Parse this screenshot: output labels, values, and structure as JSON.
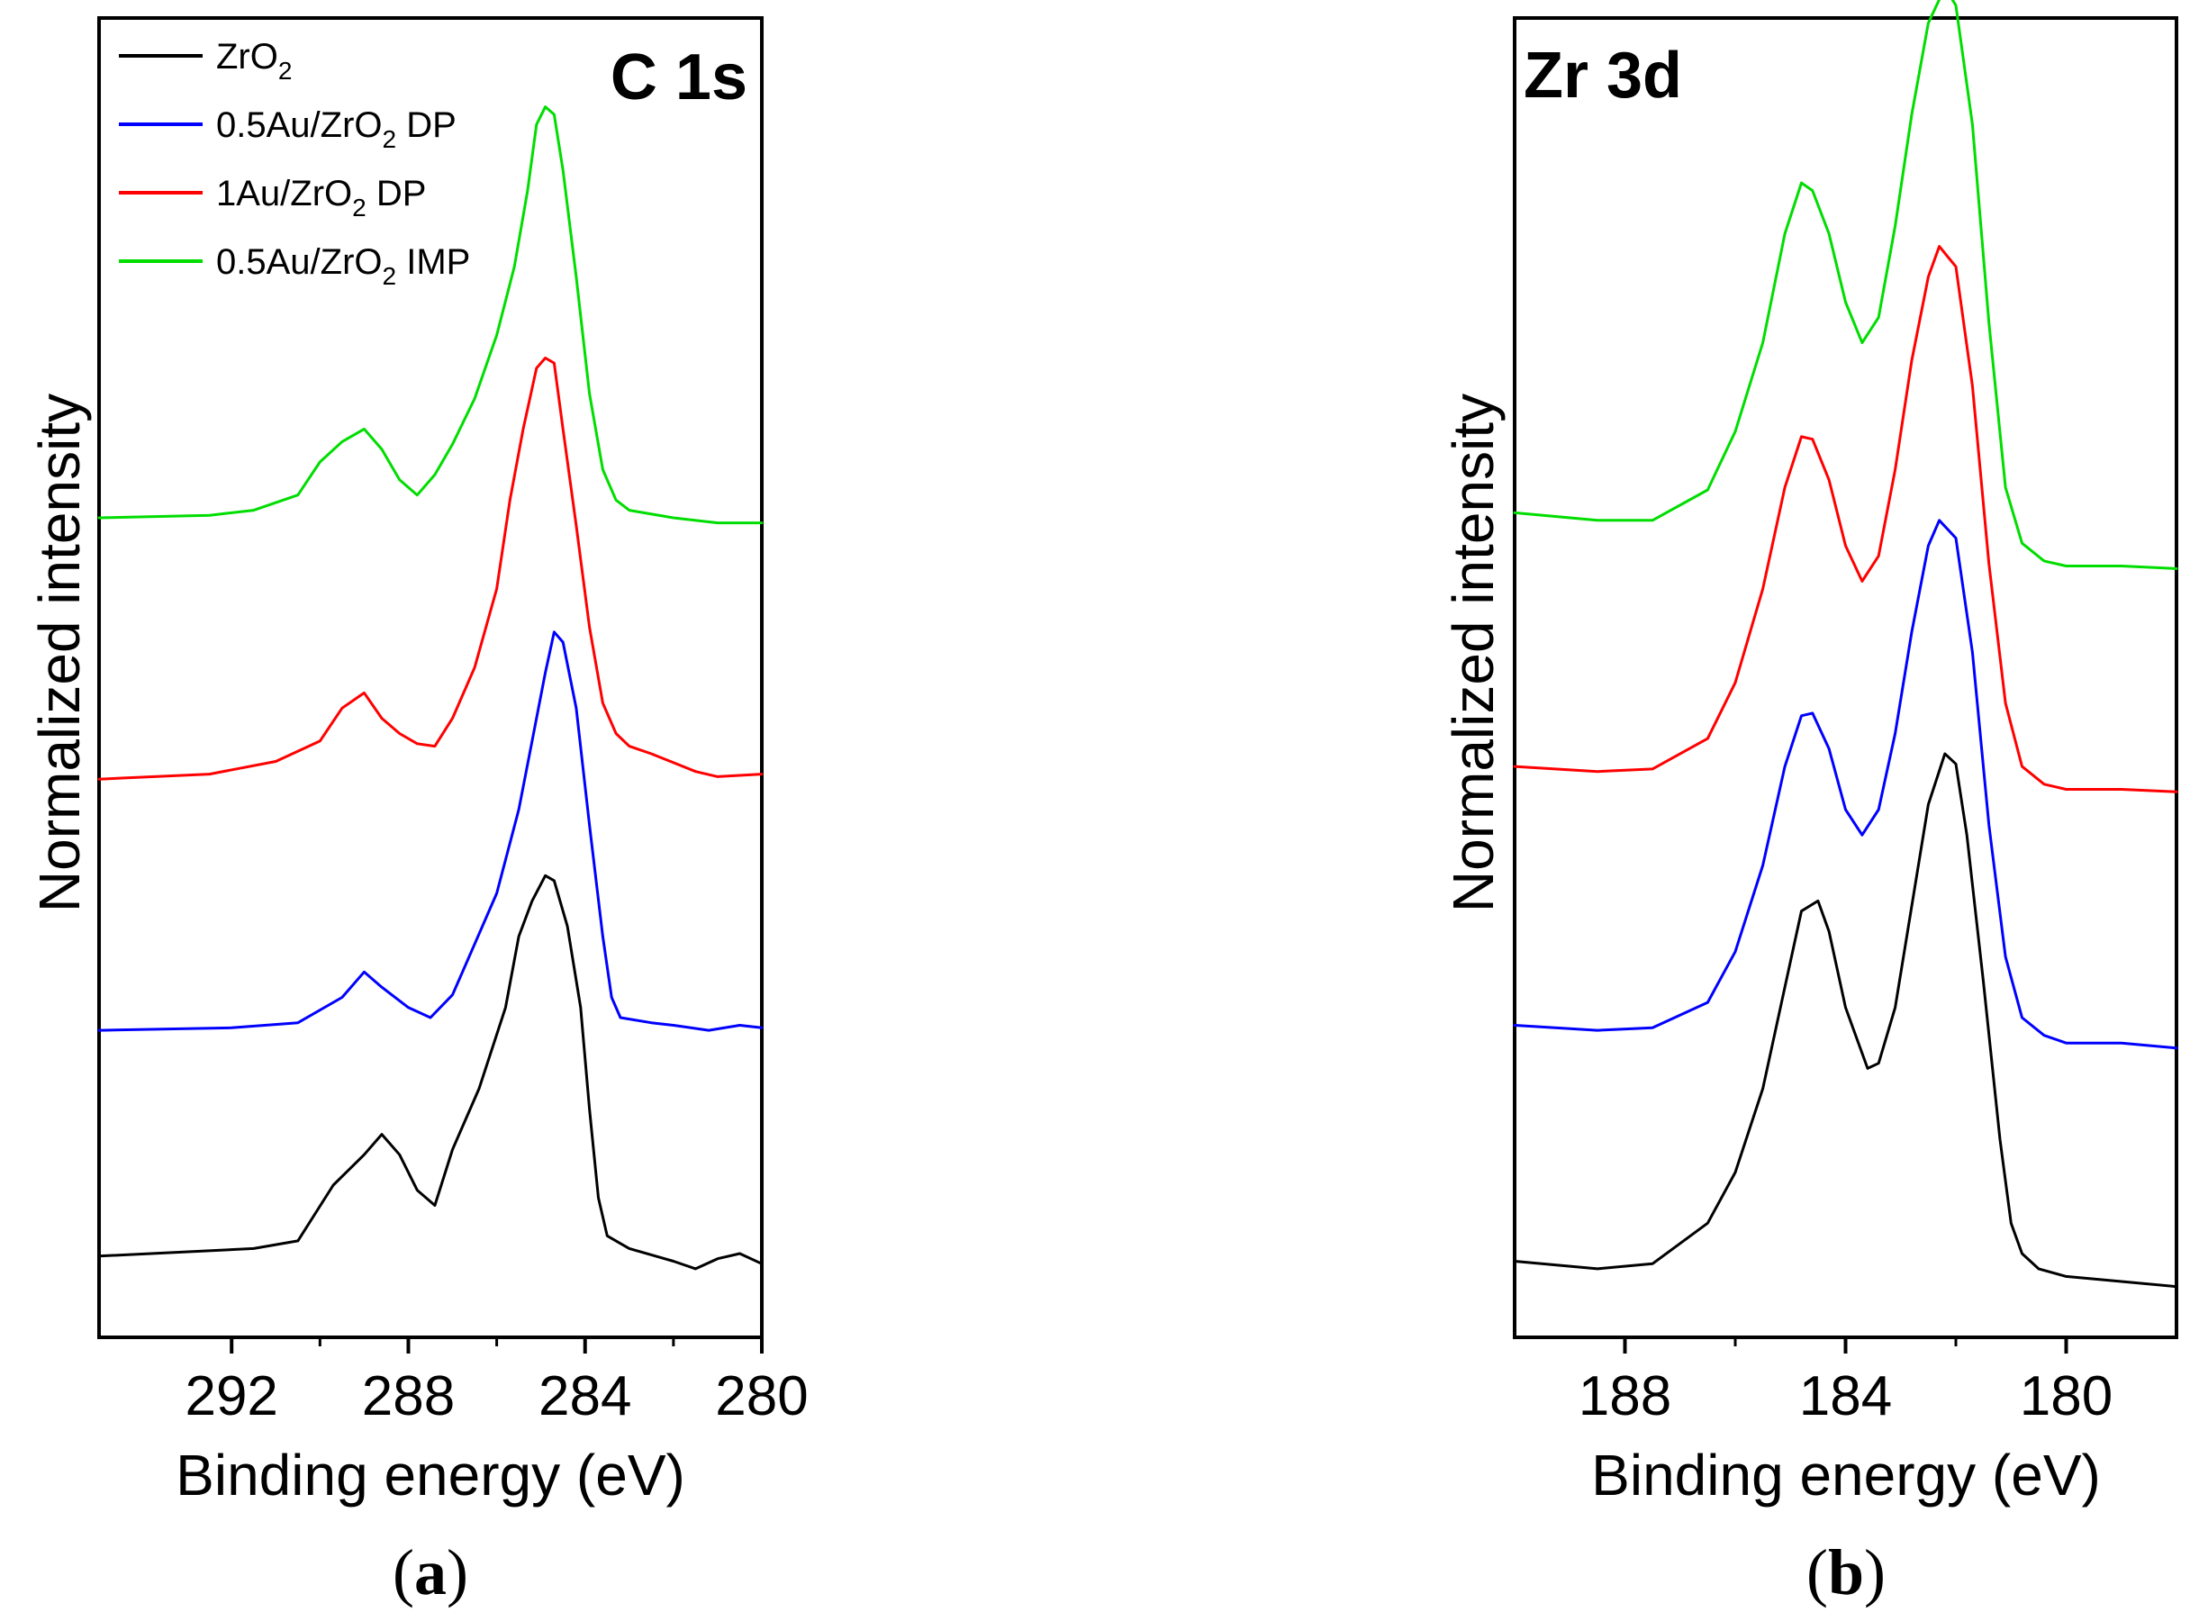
{
  "panels": [
    {
      "id": "a",
      "caption_letter": "a",
      "chart_data": {
        "type": "line",
        "title": "C 1s",
        "xlabel": "Binding energy (eV)",
        "ylabel": "Normalized intensity",
        "xlim": [
          295,
          280
        ],
        "xticks": [
          292,
          288,
          284,
          280
        ],
        "ylim": [
          0,
          5.2
        ],
        "y_ticks_shown": false,
        "legend_position": "top-left",
        "legend": [
          {
            "name": "ZrO",
            "sub": "2",
            "suffix": "",
            "color": "#000000"
          },
          {
            "name": "0.5Au/ZrO",
            "sub": "2",
            "suffix": " DP",
            "color": "#0000ff"
          },
          {
            "name": "1Au/ZrO",
            "sub": "2",
            "suffix": " DP",
            "color": "#ff0000"
          },
          {
            "name": "0.5Au/ZrO",
            "sub": "2",
            "suffix": " IMP",
            "color": "#00dd00"
          }
        ],
        "series": [
          {
            "color": "#000000",
            "x": [
              295,
              291.5,
              290.5,
              289.7,
              289,
              288.6,
              288.2,
              287.8,
              287.4,
              287,
              286.4,
              285.8,
              285.5,
              285.2,
              284.9,
              284.7,
              284.4,
              284.1,
              283.9,
              283.7,
              283.5,
              283.2,
              283,
              282,
              281.5,
              281,
              280.5,
              280
            ],
            "y": [
              0.32,
              0.35,
              0.38,
              0.6,
              0.72,
              0.8,
              0.72,
              0.58,
              0.52,
              0.74,
              0.98,
              1.3,
              1.58,
              1.72,
              1.82,
              1.8,
              1.62,
              1.3,
              0.9,
              0.55,
              0.4,
              0.37,
              0.35,
              0.3,
              0.27,
              0.31,
              0.33,
              0.29
            ]
          },
          {
            "color": "#0000ff",
            "x": [
              295,
              292,
              290.5,
              289.5,
              289,
              288.6,
              288,
              287.5,
              287,
              286.5,
              286,
              285.5,
              285.2,
              284.9,
              284.7,
              284.5,
              284.2,
              283.9,
              283.6,
              283.4,
              283.2,
              282.5,
              282,
              281.2,
              280.5,
              280
            ],
            "y": [
              1.21,
              1.22,
              1.24,
              1.34,
              1.44,
              1.38,
              1.3,
              1.26,
              1.35,
              1.55,
              1.75,
              2.08,
              2.35,
              2.62,
              2.78,
              2.74,
              2.48,
              2.02,
              1.58,
              1.34,
              1.26,
              1.24,
              1.23,
              1.21,
              1.23,
              1.22
            ]
          },
          {
            "color": "#ff0000",
            "x": [
              295,
              292.5,
              291,
              290,
              289.5,
              289,
              288.6,
              288.2,
              287.8,
              287.4,
              287,
              286.5,
              286,
              285.7,
              285.4,
              285.1,
              284.9,
              284.7,
              284.5,
              284.2,
              283.9,
              283.6,
              283.3,
              283,
              282.5,
              281.5,
              281,
              280
            ],
            "y": [
              2.2,
              2.22,
              2.27,
              2.35,
              2.48,
              2.54,
              2.44,
              2.38,
              2.34,
              2.33,
              2.44,
              2.64,
              2.95,
              3.3,
              3.58,
              3.82,
              3.86,
              3.84,
              3.58,
              3.2,
              2.8,
              2.5,
              2.38,
              2.33,
              2.3,
              2.23,
              2.21,
              2.22
            ]
          },
          {
            "color": "#00dd00",
            "x": [
              295,
              292.5,
              291.5,
              290.5,
              290,
              289.5,
              289,
              288.6,
              288.2,
              287.8,
              287.4,
              287,
              286.5,
              286,
              285.6,
              285.3,
              285.1,
              284.9,
              284.7,
              284.5,
              284.2,
              283.9,
              283.6,
              283.3,
              283,
              282,
              281,
              280
            ],
            "y": [
              3.23,
              3.24,
              3.26,
              3.32,
              3.45,
              3.53,
              3.58,
              3.5,
              3.38,
              3.32,
              3.4,
              3.52,
              3.7,
              3.95,
              4.22,
              4.52,
              4.78,
              4.85,
              4.82,
              4.6,
              4.18,
              3.72,
              3.42,
              3.3,
              3.26,
              3.23,
              3.21,
              3.21
            ]
          }
        ]
      }
    },
    {
      "id": "b",
      "caption_letter": "b",
      "chart_data": {
        "type": "line",
        "title": "Zr 3d",
        "xlabel": "Binding energy (eV)",
        "ylabel": "Normalized intensity",
        "xlim": [
          190,
          178
        ],
        "xticks": [
          188,
          184,
          180
        ],
        "ylim": [
          0,
          5.2
        ],
        "y_ticks_shown": false,
        "series": [
          {
            "color": "#000000",
            "x": [
              190,
              188.5,
              187.5,
              186.5,
              186,
              185.5,
              185.1,
              184.8,
              184.5,
              184.3,
              184,
              183.6,
              183.4,
              183.1,
              182.8,
              182.5,
              182.2,
              182,
              181.8,
              181.5,
              181.2,
              181,
              180.8,
              180.5,
              180,
              179,
              178
            ],
            "y": [
              0.3,
              0.27,
              0.29,
              0.45,
              0.65,
              0.98,
              1.38,
              1.68,
              1.72,
              1.6,
              1.3,
              1.06,
              1.08,
              1.3,
              1.7,
              2.1,
              2.3,
              2.26,
              1.98,
              1.4,
              0.78,
              0.45,
              0.33,
              0.27,
              0.24,
              0.22,
              0.2
            ]
          },
          {
            "color": "#0000ff",
            "x": [
              190,
              188.5,
              187.5,
              186.5,
              186,
              185.5,
              185.1,
              184.8,
              184.6,
              184.3,
              184,
              183.7,
              183.4,
              183.1,
              182.8,
              182.5,
              182.3,
              182,
              181.7,
              181.4,
              181.1,
              180.8,
              180.4,
              180,
              179,
              178
            ],
            "y": [
              1.23,
              1.21,
              1.22,
              1.32,
              1.52,
              1.86,
              2.25,
              2.45,
              2.46,
              2.32,
              2.08,
              1.98,
              2.08,
              2.38,
              2.78,
              3.12,
              3.22,
              3.15,
              2.7,
              2.02,
              1.5,
              1.26,
              1.19,
              1.16,
              1.16,
              1.14
            ]
          },
          {
            "color": "#ff0000",
            "x": [
              190,
              188.5,
              187.5,
              186.5,
              186,
              185.5,
              185.1,
              184.8,
              184.6,
              184.3,
              184,
              183.7,
              183.4,
              183.1,
              182.8,
              182.5,
              182.3,
              182,
              181.7,
              181.4,
              181.1,
              180.8,
              180.4,
              180,
              179,
              178
            ],
            "y": [
              2.25,
              2.23,
              2.24,
              2.36,
              2.58,
              2.95,
              3.35,
              3.55,
              3.54,
              3.38,
              3.12,
              2.98,
              3.08,
              3.42,
              3.85,
              4.18,
              4.3,
              4.22,
              3.75,
              3.05,
              2.5,
              2.25,
              2.18,
              2.16,
              2.16,
              2.15
            ]
          },
          {
            "color": "#00dd00",
            "x": [
              190,
              188.5,
              187.5,
              186.5,
              186,
              185.5,
              185.1,
              184.8,
              184.6,
              184.3,
              184,
              183.7,
              183.4,
              183.1,
              182.8,
              182.5,
              182.2,
              182,
              181.7,
              181.4,
              181.1,
              180.8,
              180.4,
              180,
              179,
              178
            ],
            "y": [
              3.25,
              3.22,
              3.22,
              3.34,
              3.57,
              3.92,
              4.35,
              4.55,
              4.52,
              4.35,
              4.08,
              3.92,
              4.02,
              4.38,
              4.82,
              5.18,
              5.32,
              5.25,
              4.78,
              4.0,
              3.35,
              3.13,
              3.06,
              3.04,
              3.04,
              3.03
            ]
          }
        ]
      }
    }
  ]
}
